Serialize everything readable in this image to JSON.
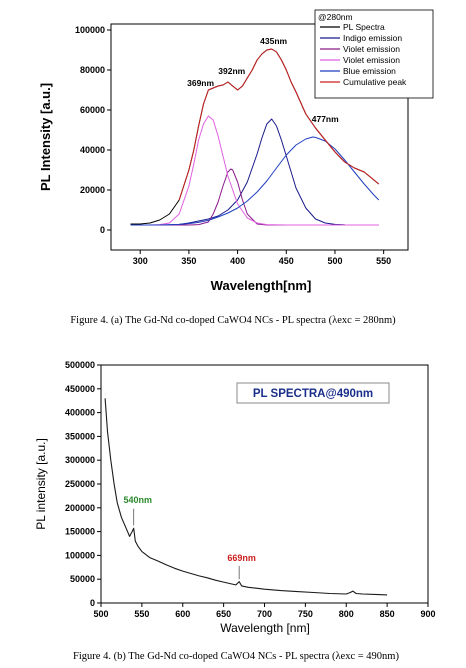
{
  "chart_data": [
    {
      "type": "line",
      "xlabel": "Wavelength[nm]",
      "ylabel": "PL Intensity [a.u.]",
      "xlim": [
        270,
        575
      ],
      "ylim": [
        -10000,
        103000
      ],
      "xticks": [
        300,
        350,
        400,
        450,
        500,
        550
      ],
      "yticks": [
        0,
        20000,
        40000,
        60000,
        80000,
        100000
      ],
      "legend_title": "@280nm",
      "legend_position": "top-right",
      "series": [
        {
          "name": "PL Spectra",
          "color": "#000000",
          "x": [
            290,
            300,
            310,
            320,
            330,
            340,
            350,
            355,
            360,
            365,
            370,
            375,
            380,
            385,
            390,
            395,
            400,
            405,
            410,
            415,
            420,
            425,
            430,
            435,
            440,
            445,
            450,
            455,
            460,
            470,
            480,
            490,
            500,
            510,
            520,
            530,
            540,
            545
          ],
          "values": [
            3000,
            3000,
            3500,
            5000,
            8000,
            15000,
            30000,
            40000,
            52000,
            63000,
            70000,
            71000,
            72000,
            72500,
            74000,
            72000,
            70000,
            72000,
            76000,
            80000,
            85000,
            88000,
            90000,
            90500,
            89000,
            85000,
            80000,
            74000,
            69000,
            58000,
            51000,
            45000,
            39000,
            34000,
            31000,
            29000,
            25000,
            23000
          ]
        },
        {
          "name": "Indigo emission",
          "color": "#1a1a8c",
          "x": [
            290,
            300,
            310,
            320,
            330,
            340,
            350,
            360,
            370,
            380,
            390,
            400,
            410,
            420,
            425,
            430,
            435,
            440,
            445,
            450,
            460,
            470,
            480,
            490,
            500,
            510
          ],
          "values": [
            2500,
            2500,
            2500,
            2500,
            2600,
            2800,
            3500,
            4500,
            5500,
            7000,
            10000,
            15000,
            24000,
            38000,
            46000,
            53000,
            55500,
            52000,
            45000,
            37000,
            21000,
            11000,
            5500,
            3500,
            2800,
            2600
          ]
        },
        {
          "name": "Violet emission",
          "color": "#8b1a8b",
          "x": [
            290,
            300,
            310,
            320,
            330,
            340,
            350,
            360,
            370,
            375,
            380,
            385,
            390,
            393,
            395,
            400,
            405,
            410,
            420,
            430,
            440,
            450,
            470,
            500,
            545
          ],
          "values": [
            2500,
            2500,
            2500,
            2500,
            2500,
            2500,
            2500,
            2700,
            4000,
            8000,
            14000,
            22000,
            29000,
            30500,
            30000,
            24000,
            15000,
            8000,
            3000,
            2500,
            2500,
            2500,
            2500,
            2500,
            2500
          ]
        },
        {
          "name": "Violet emission",
          "color": "#e060e0",
          "x": [
            290,
            300,
            310,
            320,
            330,
            340,
            350,
            355,
            360,
            365,
            370,
            375,
            380,
            385,
            390,
            400,
            410,
            420,
            430,
            450,
            470,
            500,
            545
          ],
          "values": [
            2500,
            2500,
            2500,
            2700,
            3500,
            8000,
            22000,
            33000,
            45000,
            53000,
            57000,
            55000,
            47000,
            37000,
            27000,
            13000,
            6000,
            3500,
            2700,
            2500,
            2500,
            2500,
            2500
          ]
        },
        {
          "name": "Blue emission",
          "color": "#1f3fbf",
          "x": [
            290,
            300,
            310,
            320,
            330,
            340,
            350,
            360,
            370,
            380,
            390,
            400,
            410,
            420,
            430,
            440,
            450,
            460,
            470,
            477,
            480,
            490,
            500,
            510,
            520,
            530,
            540,
            545
          ],
          "values": [
            2500,
            2500,
            2500,
            2500,
            2600,
            2800,
            3200,
            3800,
            4800,
            6500,
            8500,
            11000,
            14500,
            19000,
            24500,
            31000,
            37500,
            42500,
            45500,
            46500,
            46300,
            44500,
            40500,
            35000,
            29000,
            23000,
            17500,
            15000
          ]
        },
        {
          "name": "Cumulative peak",
          "color": "#cc2020",
          "x": [
            340,
            350,
            355,
            360,
            365,
            370,
            375,
            380,
            385,
            390,
            395,
            400,
            405,
            410,
            415,
            420,
            425,
            430,
            435,
            440,
            445,
            450,
            455,
            460,
            470,
            480,
            490,
            500,
            510,
            520,
            530,
            540,
            545
          ],
          "values": [
            15000,
            30000,
            40000,
            52000,
            63000,
            70000,
            71000,
            72000,
            72500,
            74000,
            72000,
            70000,
            72000,
            76000,
            80000,
            85000,
            88000,
            90000,
            90500,
            89000,
            85000,
            80000,
            74000,
            69000,
            58000,
            51000,
            45000,
            39000,
            34000,
            31000,
            29000,
            25000,
            23000
          ]
        }
      ],
      "annotations": [
        {
          "text": "369nm",
          "x": 362,
          "y": 72000
        },
        {
          "text": "392nm",
          "x": 394,
          "y": 78000
        },
        {
          "text": "435nm",
          "x": 437,
          "y": 93000
        },
        {
          "text": "477nm",
          "x": 490,
          "y": 54000
        }
      ],
      "caption": "Figure 4. (a) The Gd-Nd co-doped CaWO4 NCs - PL spectra (λexc = 280nm)"
    },
    {
      "type": "line",
      "xlabel": "Wavelength [nm]",
      "ylabel": "PL intensity [a.u.]",
      "xlim": [
        500,
        900
      ],
      "ylim": [
        0,
        500000
      ],
      "xticks": [
        500,
        550,
        600,
        650,
        700,
        750,
        800,
        850,
        900
      ],
      "yticks": [
        0,
        50000,
        100000,
        150000,
        200000,
        250000,
        300000,
        350000,
        400000,
        450000,
        500000
      ],
      "box_label": "PL SPECTRA@490nm",
      "series": [
        {
          "name": "PL spectra",
          "color": "#1a1a1a",
          "x": [
            505,
            508,
            512,
            516,
            520,
            525,
            530,
            535,
            538,
            540,
            542,
            545,
            550,
            560,
            570,
            580,
            590,
            600,
            610,
            620,
            630,
            640,
            650,
            660,
            665,
            669,
            672,
            680,
            690,
            700,
            720,
            740,
            760,
            780,
            800,
            805,
            808,
            812,
            820,
            835,
            850
          ],
          "values": [
            430000,
            360000,
            300000,
            250000,
            210000,
            180000,
            160000,
            140000,
            150000,
            157000,
            130000,
            120000,
            108000,
            95000,
            88000,
            80000,
            73000,
            67000,
            62000,
            57000,
            53000,
            48000,
            44000,
            40000,
            38000,
            45000,
            36000,
            33000,
            31000,
            29000,
            26000,
            24000,
            22000,
            20000,
            19000,
            22000,
            25000,
            20000,
            19000,
            18000,
            17000
          ]
        }
      ],
      "annotations": [
        {
          "text": "540nm",
          "x": 545,
          "y": 210000,
          "color": "#2a8a2a"
        },
        {
          "text": "669nm",
          "x": 672,
          "y": 88000,
          "color": "#cc2020"
        }
      ],
      "caption": "Figure 4. (b) The Gd-Nd co-doped CaWO4 NCs - PL spectra (λexc = 490nm)"
    }
  ]
}
